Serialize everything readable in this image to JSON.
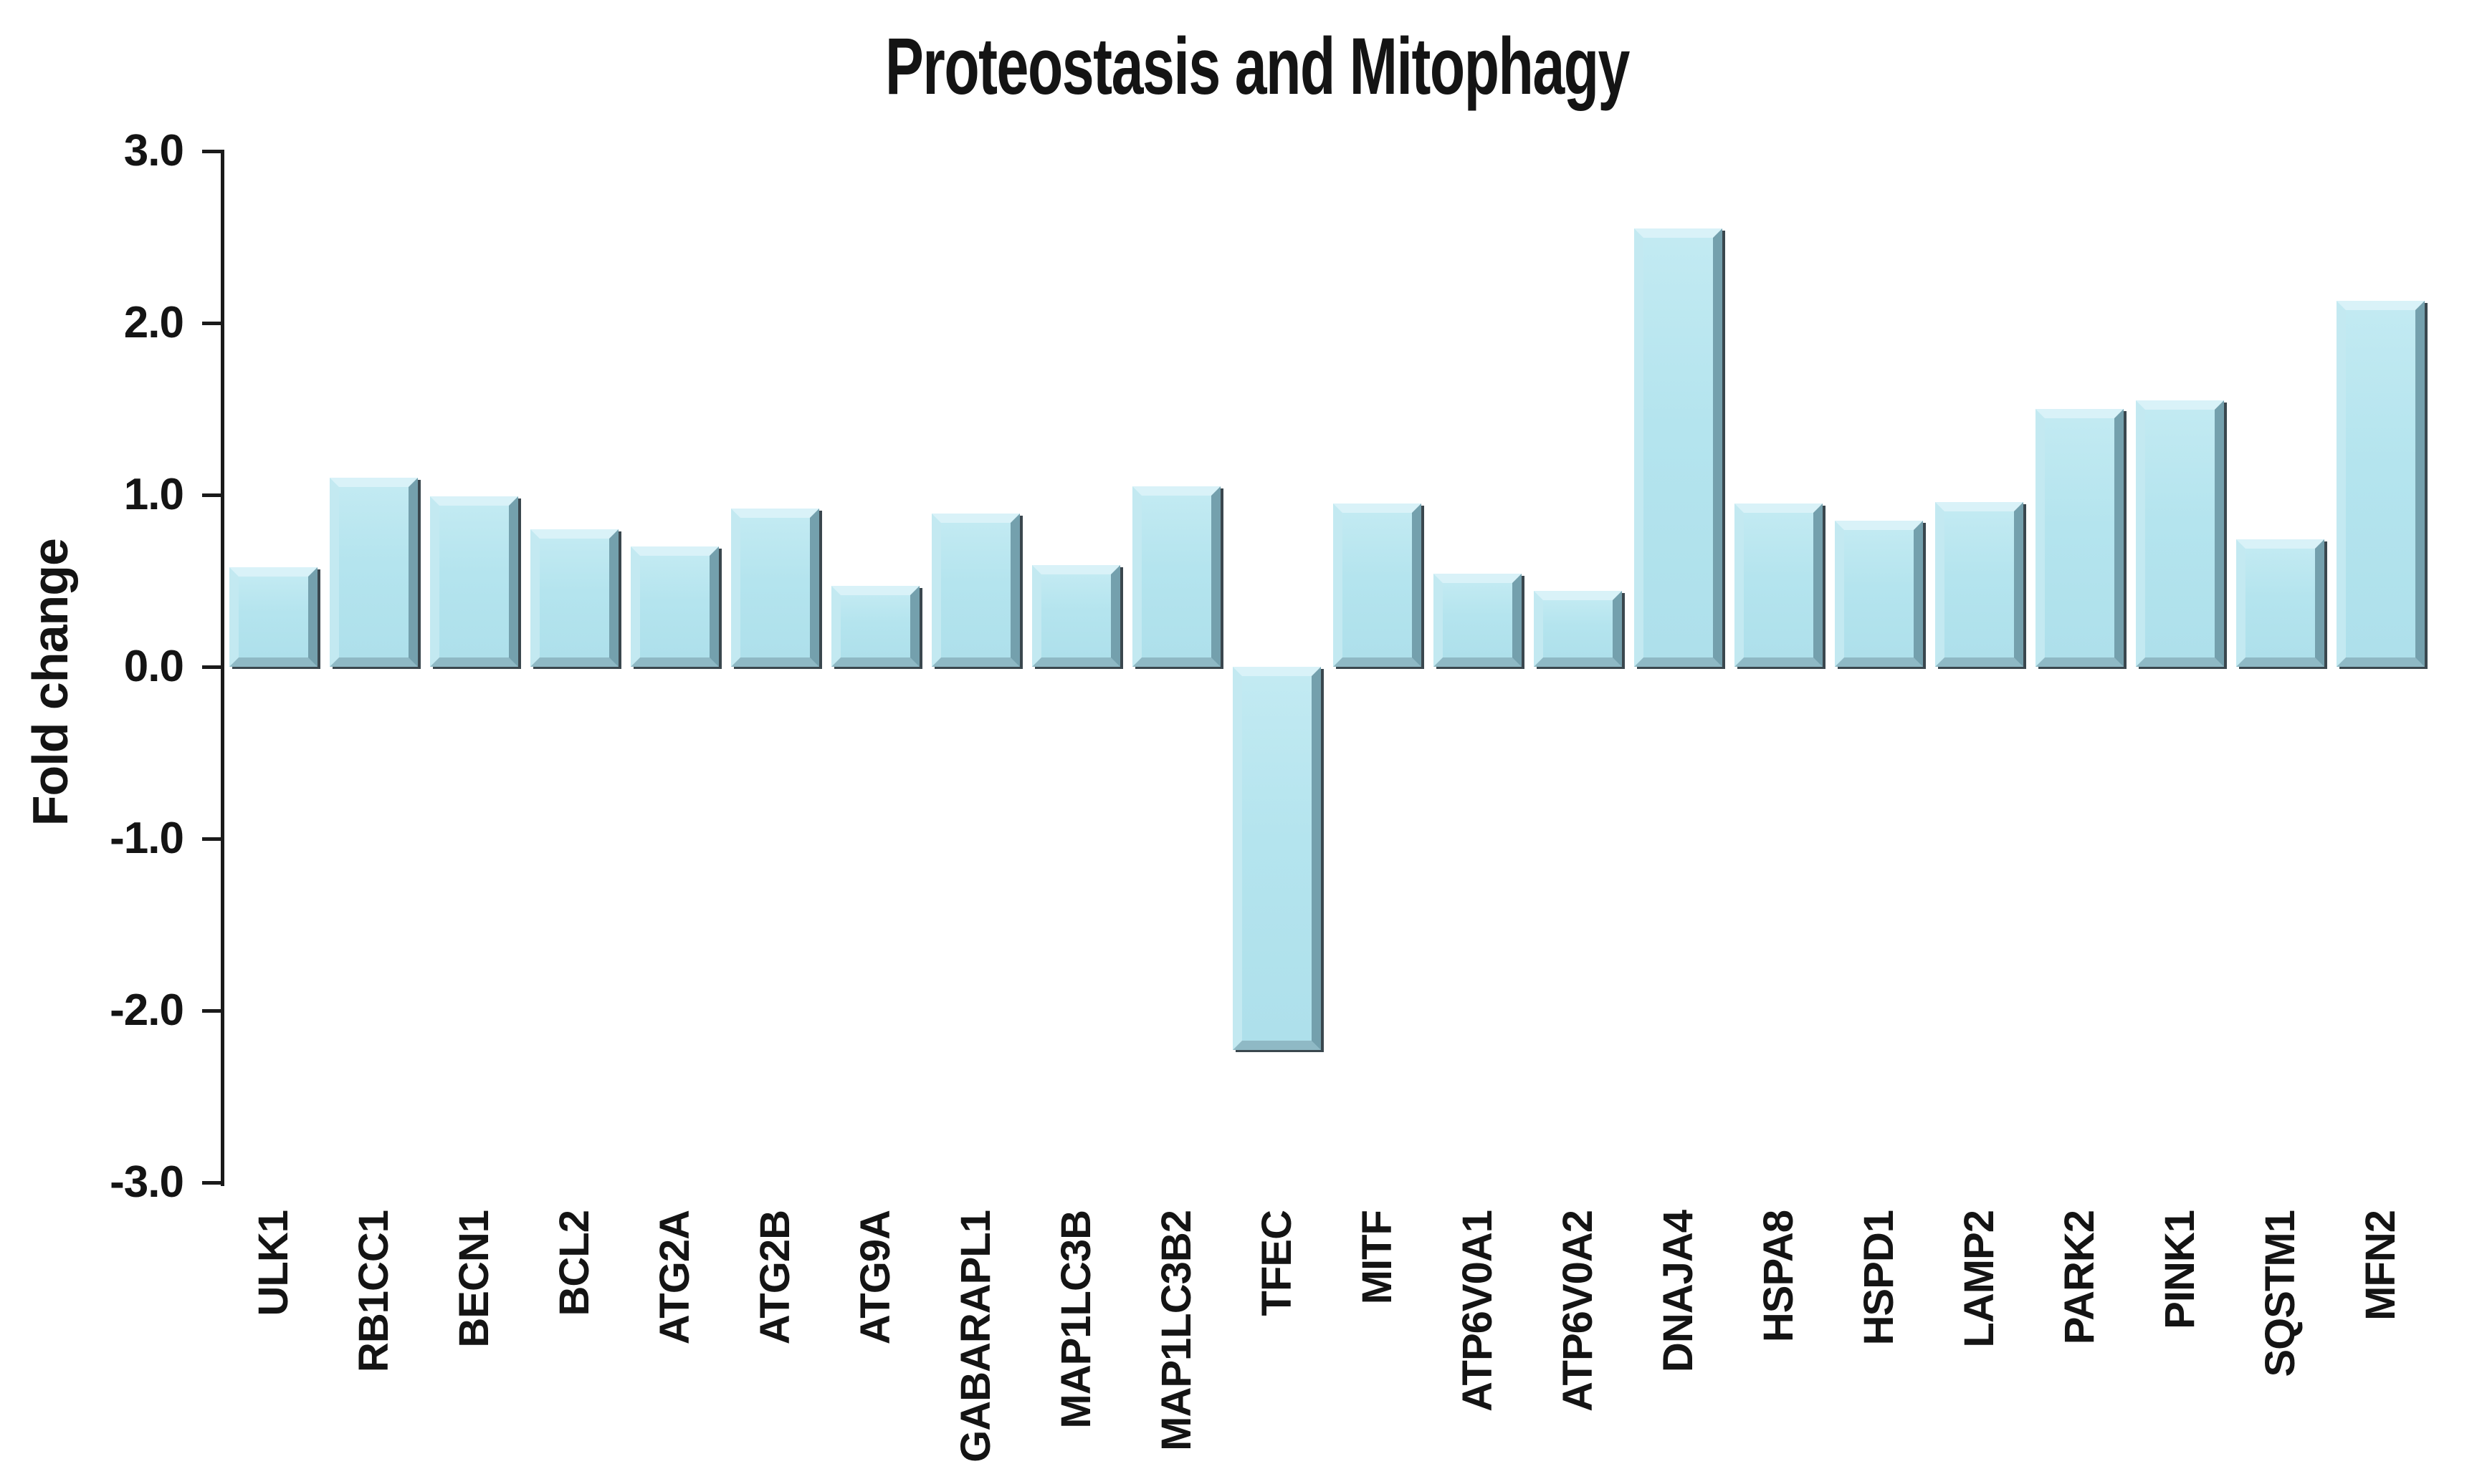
{
  "chart_data": {
    "type": "bar",
    "title": "Proteostasis and Mitophagy",
    "xlabel": "",
    "ylabel": "Fold change",
    "ylim": [
      -3.0,
      3.0
    ],
    "grid": false,
    "legend": false,
    "background_color": "#ffffff",
    "axis_color": "#1a1a1a",
    "text_color": "#141414",
    "bar_face_color": "#b4e4ee",
    "bar_highlight_color": "#d9f2f8",
    "bar_shadow_color": "#74a0ad",
    "bar_outline_color": "#3a474e",
    "ytick_labels": [
      "3.0",
      "2.0",
      "1.0",
      "0.0",
      "-1.0",
      "-2.0",
      "-3.0"
    ],
    "ytick_values": [
      3.0,
      2.0,
      1.0,
      0.0,
      -1.0,
      -2.0,
      -3.0
    ],
    "categories": [
      "ULK1",
      "RB1CC1",
      "BECN1",
      "BCL2",
      "ATG2A",
      "ATG2B",
      "ATG9A",
      "GABARAPL1",
      "MAP1LC3B",
      "MAP1LC3B2",
      "TFEC",
      "MITF",
      "ATP6V0A1",
      "ATP6V0A2",
      "DNAJA4",
      "HSPA8",
      "HSPD1",
      "LAMP2",
      "PARK2",
      "PINK1",
      "SQSTM1",
      "MFN2"
    ],
    "values": [
      0.58,
      1.1,
      0.99,
      0.8,
      0.7,
      0.92,
      0.47,
      0.89,
      0.59,
      1.05,
      -2.23,
      0.95,
      0.54,
      0.44,
      2.55,
      0.95,
      0.85,
      0.96,
      1.5,
      1.55,
      0.74,
      2.13
    ]
  }
}
